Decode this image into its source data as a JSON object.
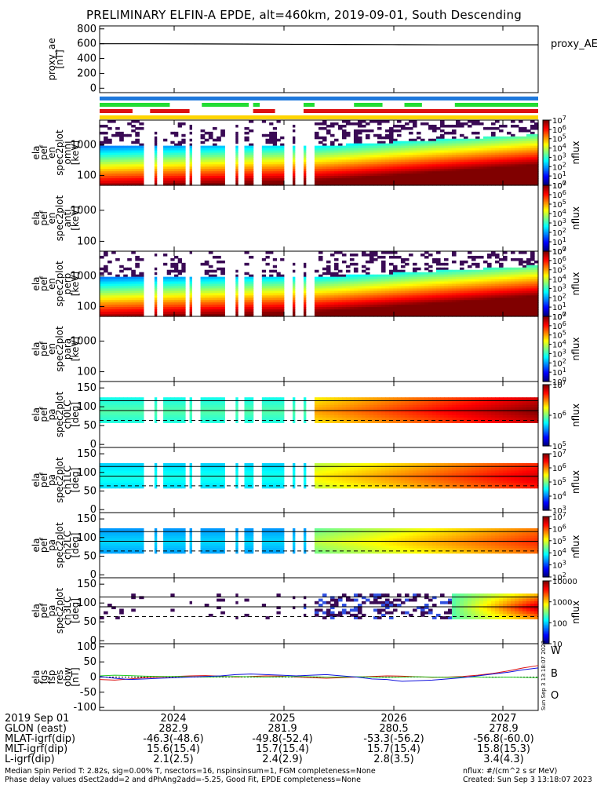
{
  "title": "PRELIMINARY ELFIN-A EPDE, alt=460km, 2019-09-01, South Descending",
  "chart_data": {
    "type": "heatmap",
    "x_ticks": [
      "2024",
      "2025",
      "2026",
      "2027"
    ],
    "proxy_ae": {
      "ylabel": [
        "proxy_ae",
        "[nT]"
      ],
      "yticks": [
        "800",
        "600",
        "400",
        "200",
        "0"
      ],
      "ylim": [
        -60,
        840
      ],
      "legend": "proxy_AE",
      "values": [
        600,
        600,
        598,
        595,
        592,
        590,
        588,
        585,
        585,
        585
      ]
    },
    "status_bars": [
      {
        "color": "#1e78dc",
        "segments": [
          [
            0,
            1
          ]
        ]
      },
      {
        "color": "#22dd33",
        "segments": [
          [
            0,
            0.16
          ],
          [
            0.233,
            0.34
          ],
          [
            0.35,
            0.365
          ],
          [
            0.465,
            0.49
          ],
          [
            0.58,
            0.645
          ],
          [
            0.695,
            0.735
          ],
          [
            0.81,
            1
          ]
        ]
      },
      {
        "color": "#dd1111",
        "segments": [
          [
            0,
            0.075
          ],
          [
            0.115,
            0.205
          ],
          [
            0.35,
            0.4
          ],
          [
            0.465,
            1
          ]
        ]
      },
      {
        "color": "#ffd400",
        "segments": [
          [
            0,
            1
          ]
        ]
      }
    ],
    "spectrograms": [
      {
        "ylabel": [
          "ela",
          "pef",
          "en",
          "spec2plot",
          "omni",
          "[keV]"
        ],
        "yticks": [
          "1000",
          "100"
        ],
        "yscale": "log",
        "filled": true
      },
      {
        "ylabel": [
          "ela",
          "pef",
          "en",
          "spec2plot",
          "anti",
          "[keV]"
        ],
        "yticks": [
          "1000",
          "100"
        ],
        "yscale": "log",
        "filled": false
      },
      {
        "ylabel": [
          "ela",
          "pef",
          "en",
          "spec2plot",
          "perp",
          "[keV]"
        ],
        "yticks": [
          "1000",
          "100"
        ],
        "yscale": "log",
        "filled": true
      },
      {
        "ylabel": [
          "ela",
          "pef",
          "en",
          "spec2plot",
          "para",
          "[keV]"
        ],
        "yticks": [
          "1000",
          "100"
        ],
        "yscale": "log",
        "filled": false
      }
    ],
    "pitch_panels": [
      {
        "ylabel": [
          "ela",
          "pef",
          "pa",
          "spec2plot",
          "ch0LC",
          "[deg]"
        ],
        "yticks": [
          "150",
          "100",
          "50",
          "0"
        ]
      },
      {
        "ylabel": [
          "ela",
          "pef",
          "pa",
          "spec2plot",
          "ch1LC",
          "[deg]"
        ],
        "yticks": [
          "150",
          "100",
          "50",
          "0"
        ]
      },
      {
        "ylabel": [
          "ela",
          "pef",
          "pa",
          "spec2plot",
          "ch2LC",
          "[deg]"
        ],
        "yticks": [
          "150",
          "100",
          "50",
          "0"
        ]
      },
      {
        "ylabel": [
          "ela",
          "pef",
          "pa",
          "spec2plot",
          "ch3LC",
          "[deg]"
        ],
        "yticks": [
          "150",
          "100",
          "50",
          "0"
        ]
      }
    ],
    "colorbars": [
      {
        "label": "nflux",
        "ticks": [
          "10^7",
          "10^6",
          "10^5",
          "10^4",
          "10^3",
          "10^2",
          "10^1",
          "10^0"
        ]
      },
      {
        "label": "nflux",
        "ticks": [
          "10^7",
          "10^6",
          "10^5",
          "10^4",
          "10^3",
          "10^2",
          "10^1",
          "10^0"
        ]
      },
      {
        "label": "nflux",
        "ticks": [
          "10^7",
          "10^6",
          "10^5",
          "10^4",
          "10^3",
          "10^2",
          "10^1",
          "10^0"
        ]
      },
      {
        "label": "nflux",
        "ticks": [
          "10^7",
          "10^6",
          "10^5",
          "10^4",
          "10^3",
          "10^2",
          "10^1",
          "10^0"
        ]
      },
      {
        "label": "nflux",
        "ticks": [
          "10^7",
          "10^6",
          "10^5"
        ]
      },
      {
        "label": "nflux",
        "ticks": [
          "10^7",
          "10^6",
          "10^5",
          "10^4",
          "10^3"
        ]
      },
      {
        "label": "nflux",
        "ticks": [
          "10^7",
          "10^6",
          "10^5",
          "10^4",
          "10^3",
          "10^2"
        ]
      },
      {
        "label": "nflux",
        "ticks": [
          "10000",
          "1000",
          "100",
          "10"
        ]
      }
    ],
    "fgs": {
      "ylabel": [
        "ela",
        "fgs",
        "fsp",
        "res",
        "obw",
        "[nT]"
      ],
      "yticks": [
        "100",
        "50",
        "0",
        "-50",
        "-100"
      ],
      "ylim": [
        -110,
        110
      ],
      "series": [
        {
          "name": "W",
          "color": "#dd1111",
          "values": [
            -8,
            -10,
            -6,
            -2,
            0,
            2,
            4,
            5,
            3,
            0,
            2,
            4,
            3,
            0,
            -2,
            -4,
            -2,
            0,
            2,
            4,
            3,
            1,
            -1,
            0,
            2,
            6,
            12,
            20,
            30,
            38
          ]
        },
        {
          "name": "B",
          "color": "#22cc22",
          "values": [
            4,
            6,
            5,
            3,
            2,
            2,
            1,
            0,
            1,
            2,
            1,
            0,
            1,
            2,
            1,
            0,
            0,
            1,
            0,
            -1,
            0,
            1,
            0,
            -1,
            0,
            0,
            -1,
            0,
            -1,
            -2
          ]
        },
        {
          "name": "O",
          "color": "#1111dd",
          "values": [
            2,
            -4,
            -8,
            -6,
            -4,
            -2,
            0,
            2,
            4,
            8,
            10,
            8,
            6,
            4,
            6,
            8,
            4,
            0,
            -6,
            -8,
            -14,
            -12,
            -10,
            -6,
            -2,
            4,
            10,
            16,
            24,
            30
          ]
        }
      ]
    },
    "side_text": "Sun Sep  3 13:18:07 2023"
  },
  "ephemeris": {
    "rows": [
      {
        "label": "2019 Sep 01",
        "values": [
          "2024",
          "2025",
          "2026",
          "2027"
        ]
      },
      {
        "label": "GLON (east)",
        "values": [
          "282.9",
          "281.9",
          "280.5",
          "278.9"
        ]
      },
      {
        "label": "MLAT-igrf(dip)",
        "values": [
          "-46.3(-48.6)",
          "-49.8(-52.4)",
          "-53.3(-56.2)",
          "-56.8(-60.0)"
        ]
      },
      {
        "label": "MLT-igrf(dip)",
        "values": [
          "15.6(15.4)",
          "15.7(15.4)",
          "15.7(15.4)",
          "15.8(15.3)"
        ]
      },
      {
        "label": "L-igrf(dip)",
        "values": [
          "2.1(2.5)",
          "2.4(2.9)",
          "2.8(3.5)",
          "3.4(4.3)"
        ]
      }
    ]
  },
  "footer": {
    "left_line1": "Median Spin Period T: 2.82s, sig=0.00% T, nsectors=16, nspinsinsum=1, FGM completeness=None",
    "left_line2": "Phase delay values dSect2add=2 and dPhAng2add=-5.25, Good Fit, EPDE completeness=None",
    "right_line1": "nflux: #/(cm^2 s sr MeV)",
    "right_line2": "Created: Sun Sep  3 13:18:07 2023"
  }
}
